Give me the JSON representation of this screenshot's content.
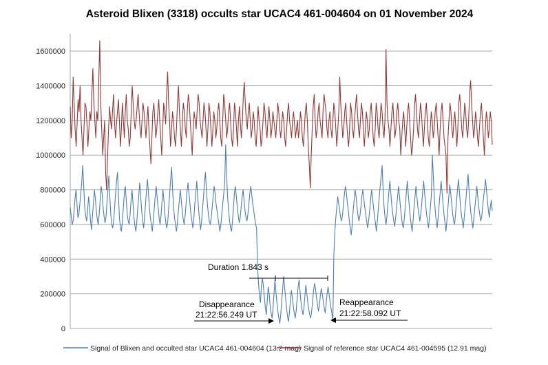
{
  "chart_data": {
    "type": "line",
    "title": "Asteroid Blixen (3318) occults star UCAC4 461-004604 on 01 November 2024",
    "xlabel": "",
    "ylabel": "",
    "ylim": [
      0,
      1700000
    ],
    "yticks": [
      0,
      200000,
      400000,
      600000,
      800000,
      1000000,
      1200000,
      1400000,
      1600000
    ],
    "ytick_labels": [
      "0",
      "200000",
      "400000",
      "600000",
      "800000",
      "1000000",
      "1200000",
      "1400000",
      "1600000"
    ],
    "grid": true,
    "legend_position": "bottom",
    "series": [
      {
        "name": "Signal of Blixen and occulted star UCAC4 461-004604 (13.2 mag)",
        "color": "#4a7ebb",
        "values": [
          700000,
          650000,
          600000,
          620000,
          680000,
          750000,
          800000,
          720000,
          640000,
          660000,
          720000,
          780000,
          850000,
          940000,
          820000,
          700000,
          650000,
          620000,
          680000,
          760000,
          700000,
          620000,
          570000,
          650000,
          720000,
          800000,
          750000,
          680000,
          630000,
          600000,
          660000,
          740000,
          820000,
          780000,
          700000,
          650000,
          610000,
          640000,
          720000,
          800000,
          880000,
          760000,
          660000,
          600000,
          580000,
          620000,
          700000,
          780000,
          850000,
          900000,
          760000,
          640000,
          580000,
          560000,
          620000,
          700000,
          780000,
          820000,
          740000,
          660000,
          620000,
          600000,
          660000,
          740000,
          800000,
          720000,
          640000,
          590000,
          560000,
          620000,
          700000,
          770000,
          840000,
          760000,
          680000,
          620000,
          580000,
          640000,
          720000,
          800000,
          860000,
          780000,
          700000,
          640000,
          600000,
          560000,
          620000,
          690000,
          760000,
          820000,
          760000,
          700000,
          640000,
          600000,
          650000,
          730000,
          800000,
          740000,
          660000,
          610000,
          580000,
          620000,
          700000,
          780000,
          860000,
          930000,
          800000,
          700000,
          640000,
          600000,
          560000,
          610000,
          680000,
          740000,
          800000,
          740000,
          680000,
          630000,
          600000,
          650000,
          720000,
          790000,
          840000,
          780000,
          720000,
          660000,
          620000,
          580000,
          640000,
          720000,
          780000,
          850000,
          760000,
          680000,
          620000,
          570000,
          620000,
          690000,
          760000,
          840000,
          900000,
          800000,
          720000,
          660000,
          620000,
          600000,
          640000,
          700000,
          760000,
          820000,
          780000,
          720000,
          680000,
          640000,
          600000,
          560000,
          600000,
          660000,
          720000,
          780000,
          840000,
          1060000,
          880000,
          760000,
          680000,
          620000,
          580000,
          560000,
          620000,
          700000,
          780000,
          820000,
          760000,
          700000,
          650000,
          610000,
          640000,
          700000,
          760000,
          800000,
          740000,
          680000,
          640000,
          620000,
          660000,
          720000,
          780000,
          820000,
          770000,
          720000,
          680000,
          640000,
          600000,
          580000,
          360000,
          260000,
          190000,
          150000,
          240000,
          290000,
          250000,
          180000,
          120000,
          80000,
          160000,
          240000,
          200000,
          130000,
          90000,
          60000,
          120000,
          200000,
          280000,
          210000,
          150000,
          100000,
          60000,
          30000,
          80000,
          160000,
          230000,
          300000,
          240000,
          180000,
          120000,
          70000,
          40000,
          90000,
          160000,
          220000,
          180000,
          130000,
          90000,
          60000,
          100000,
          170000,
          240000,
          280000,
          210000,
          150000,
          110000,
          80000,
          120000,
          190000,
          250000,
          200000,
          150000,
          110000,
          80000,
          60000,
          100000,
          160000,
          220000,
          260000,
          230000,
          180000,
          140000,
          100000,
          130000,
          190000,
          230000,
          200000,
          160000,
          120000,
          90000,
          140000,
          200000,
          240000,
          200000,
          160000,
          120000,
          90000,
          40000,
          420000,
          560000,
          640000,
          700000,
          760000,
          720000,
          680000,
          640000,
          620000,
          660000,
          720000,
          780000,
          820000,
          780000,
          720000,
          680000,
          620000,
          580000,
          540000,
          600000,
          680000,
          740000,
          800000,
          760000,
          700000,
          650000,
          620000,
          650000,
          700000,
          760000,
          800000,
          750000,
          700000,
          660000,
          620000,
          580000,
          620000,
          680000,
          740000,
          800000,
          760000,
          700000,
          650000,
          610000,
          560000,
          620000,
          690000,
          760000,
          820000,
          880000,
          940000,
          800000,
          700000,
          640000,
          600000,
          650000,
          720000,
          790000,
          850000,
          780000,
          710000,
          660000,
          620000,
          590000,
          640000,
          700000,
          760000,
          820000,
          760000,
          700000,
          650000,
          600000,
          580000,
          640000,
          710000,
          780000,
          850000,
          780000,
          710000,
          650000,
          600000,
          560000,
          620000,
          700000,
          760000,
          820000,
          760000,
          700000,
          660000,
          620000,
          660000,
          720000,
          790000,
          850000,
          780000,
          720000,
          660000,
          620000,
          580000,
          640000,
          700000,
          770000,
          1000000,
          880000,
          760000,
          680000,
          620000,
          580000,
          640000,
          710000,
          780000,
          850000,
          790000,
          720000,
          660000,
          610000,
          560000,
          620000,
          690000,
          760000,
          830000,
          780000,
          720000,
          660000,
          620000,
          600000,
          660000,
          730000,
          800000,
          860000,
          790000,
          720000,
          660000,
          620000,
          580000,
          640000,
          700000,
          760000,
          830000,
          890000,
          800000,
          720000,
          660000,
          620000,
          580000,
          640000,
          700000,
          760000,
          820000,
          760000,
          700000,
          660000,
          620000,
          640000,
          700000,
          760000,
          800000,
          860000,
          800000,
          740000,
          680000,
          640000,
          700000,
          740000,
          680000
        ]
      },
      {
        "name": "Signal of reference star UCAC4 461-004595 (12.91 mag)",
        "color": "#953735",
        "values": [
          1280000,
          1100000,
          1200000,
          1450000,
          1300000,
          1150000,
          1050000,
          1180000,
          1320000,
          1250000,
          1400000,
          1200000,
          1100000,
          1000000,
          1150000,
          1300000,
          1280000,
          1180000,
          1050000,
          1150000,
          1250000,
          1200000,
          1350000,
          1500000,
          1300000,
          1200000,
          1100000,
          1250000,
          1200000,
          1420000,
          1660000,
          1300000,
          1150000,
          1000000,
          1100000,
          1200000,
          900000,
          800000,
          1000000,
          1150000,
          1280000,
          1200000,
          1150000,
          1250000,
          1350000,
          1200000,
          1100000,
          1180000,
          1250000,
          1320000,
          1200000,
          1050000,
          1150000,
          1300000,
          1200000,
          1100000,
          1250000,
          1350000,
          1200000,
          1150000,
          1050000,
          1100000,
          1250000,
          1400000,
          1300000,
          1200000,
          1150000,
          1200000,
          1280000,
          1350000,
          1250000,
          1150000,
          1100000,
          1200000,
          1300000,
          1250000,
          1180000,
          1100000,
          1200000,
          1280000,
          1150000,
          1050000,
          950000,
          1100000,
          1250000,
          1300000,
          1200000,
          1100000,
          1150000,
          1250000,
          1320000,
          1200000,
          1100000,
          1000000,
          1150000,
          1300000,
          1250000,
          1180000,
          1350000,
          1480000,
          1300000,
          1200000,
          1050000,
          1150000,
          1250000,
          1200000,
          1100000,
          1050000,
          1150000,
          1300000,
          1400000,
          1250000,
          1150000,
          1050000,
          1200000,
          1300000,
          1250000,
          1150000,
          1100000,
          1250000,
          1350000,
          1300000,
          1200000,
          1100000,
          1000000,
          1150000,
          1250000,
          1200000,
          1150000,
          1250000,
          1350000,
          1300000,
          1200000,
          1150000,
          1100000,
          1200000,
          1300000,
          1250000,
          1150000,
          1050000,
          1150000,
          1300000,
          1250000,
          1150000,
          1050000,
          1150000,
          1250000,
          1200000,
          1100000,
          1150000,
          1250000,
          1300000,
          1200000,
          1100000,
          1050000,
          1200000,
          1350000,
          1300000,
          1200000,
          1100000,
          1150000,
          1250000,
          1300000,
          1200000,
          1100000,
          1050000,
          1150000,
          1300000,
          1250000,
          1150000,
          1050000,
          1200000,
          1280000,
          1180000,
          1100000,
          1200000,
          1350000,
          1420000,
          1300000,
          1200000,
          1150000,
          1250000,
          1300000,
          1200000,
          1100000,
          1150000,
          1250000,
          1200000,
          1100000,
          1050000,
          1150000,
          1280000,
          1200000,
          1150000,
          1050000,
          1100000,
          1200000,
          1300000,
          1250000,
          1150000,
          1100000,
          1200000,
          1280000,
          1200000,
          1100000,
          1150000,
          1250000,
          1200000,
          1150000,
          1100000,
          1200000,
          1300000,
          1250000,
          1150000,
          1100000,
          1180000,
          1250000,
          1200000,
          1100000,
          1050000,
          1150000,
          1250000,
          1300000,
          1200000,
          1150000,
          1100000,
          1200000,
          1250000,
          1180000,
          1100000,
          1150000,
          1200000,
          1100000,
          1150000,
          1250000,
          1200000,
          1100000,
          1050000,
          1150000,
          1250000,
          1300000,
          1200000,
          1050000,
          950000,
          810000,
          1000000,
          1150000,
          1280000,
          1350000,
          1200000,
          1100000,
          1150000,
          1250000,
          1300000,
          1200000,
          1150000,
          1100000,
          1250000,
          1350000,
          1300000,
          1250000,
          1150000,
          1100000,
          1200000,
          1250000,
          1150000,
          1100000,
          1200000,
          1300000,
          1250000,
          1150000,
          1050000,
          1150000,
          1250000,
          1450000,
          1300000,
          1200000,
          1100000,
          1150000,
          1250000,
          1300000,
          1200000,
          1100000,
          1050000,
          1150000,
          1300000,
          1250000,
          1150000,
          1100000,
          1200000,
          1280000,
          1350000,
          1250000,
          1150000,
          1100000,
          1200000,
          1300000,
          1250000,
          1150000,
          1050000,
          1150000,
          1250000,
          1200000,
          1100000,
          1150000,
          1250000,
          1300000,
          1200000,
          1100000,
          1050000,
          1150000,
          1300000,
          1250000,
          1150000,
          1100000,
          1200000,
          1300000,
          1250000,
          1150000,
          1100000,
          1200000,
          1610000,
          1300000,
          1200000,
          1150000,
          1050000,
          1150000,
          1250000,
          1300000,
          1200000,
          1100000,
          1150000,
          1250000,
          1300000,
          1200000,
          1150000,
          1000000,
          1100000,
          1200000,
          1250000,
          1150000,
          1050000,
          1150000,
          1250000,
          1300000,
          1200000,
          1100000,
          1000000,
          1050000,
          1150000,
          1280000,
          1350000,
          1250000,
          1150000,
          1100000,
          1200000,
          1300000,
          1250000,
          1150000,
          1050000,
          1150000,
          1250000,
          1300000,
          1200000,
          1100000,
          1050000,
          1150000,
          1250000,
          1200000,
          1100000,
          1150000,
          1250000,
          1300000,
          1200000,
          1100000,
          1000000,
          1150000,
          1250000,
          1300000,
          1200000,
          1100000,
          1050000,
          1000000,
          780000,
          1100000,
          1200000,
          1300000,
          1250000,
          1150000,
          1100000,
          1200000,
          1250000,
          1150000,
          1050000,
          1150000,
          1300000,
          1350000,
          1250000,
          1150000,
          1100000,
          1200000,
          1300000,
          1250000,
          1150000,
          1100000,
          1200000,
          1350000,
          1430000,
          1300000,
          1200000,
          1100000,
          1150000,
          1250000,
          1200000,
          1100000,
          1050000,
          1150000,
          1250000,
          1300000,
          1200000,
          1100000,
          1000000,
          1150000,
          1250000,
          1200000,
          1100000,
          1150000,
          1250000,
          1200000,
          1060000
        ]
      }
    ],
    "annotations": {
      "duration": "Duration 1.843 s",
      "disappearance_label": "Disappearance",
      "disappearance_time": "21:22:56.249 UT",
      "reappearance_label": "Reappearance",
      "reappearance_time": "21:22:58.092 UT"
    },
    "colors": {
      "grid": "#a6a6a6",
      "arrow": "#000000"
    }
  }
}
